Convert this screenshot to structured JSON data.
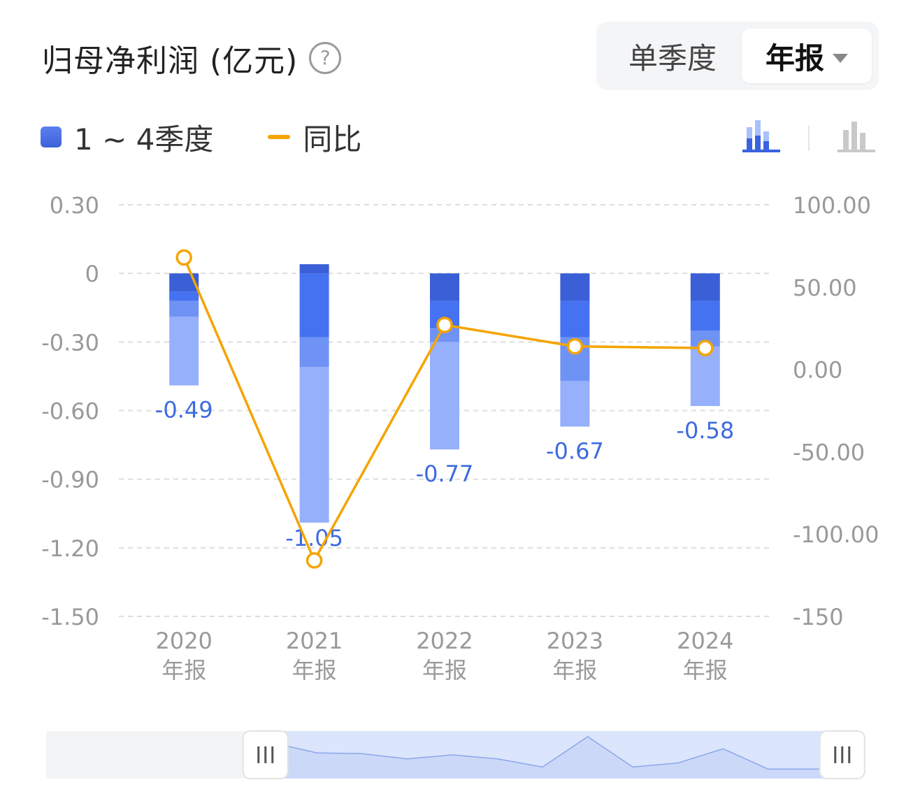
{
  "header": {
    "title": "归母净利润 (亿元)",
    "help_icon": "question-circle-icon"
  },
  "toggle": {
    "options": [
      "单季度",
      "年报"
    ],
    "selected": "年报",
    "dropdown_icon": "caret-down-icon"
  },
  "legend": {
    "bar_label": "1 ~ 4季度",
    "line_label": "同比"
  },
  "chart_type_icons": {
    "stacked": "stacked-bar-chart-icon",
    "grouped": "grouped-bar-chart-icon",
    "active": "stacked"
  },
  "colors": {
    "q1": "#3a5fd6",
    "q2": "#4572f0",
    "q3": "#6f92f5",
    "q4": "#96b0fb",
    "line": "#f5a400",
    "value_label": "#3d6ae0",
    "axis_text": "#999999",
    "grid": "#dddddd"
  },
  "chart_data": {
    "type": "bar",
    "categories": [
      "2020",
      "2021",
      "2022",
      "2023",
      "2024"
    ],
    "category_sublabel": "年报",
    "stack_segments": [
      [
        -0.08,
        -0.04,
        -0.07,
        -0.3
      ],
      [
        0.04,
        -0.28,
        -0.13,
        -0.68
      ],
      [
        -0.12,
        -0.12,
        -0.06,
        -0.47
      ],
      [
        -0.12,
        -0.16,
        -0.19,
        -0.2
      ],
      [
        -0.12,
        -0.13,
        -0.07,
        -0.26
      ]
    ],
    "totals": [
      -0.49,
      -1.05,
      -0.77,
      -0.67,
      -0.58
    ],
    "total_labels": [
      "-0.49",
      "-1.05",
      "-0.77",
      "-0.67",
      "-0.58"
    ],
    "line_series": {
      "values": [
        68,
        -116,
        27,
        14,
        13
      ]
    },
    "y_left": {
      "ticks": [
        0.3,
        0,
        -0.3,
        -0.6,
        -0.9,
        -1.2,
        -1.5
      ],
      "tick_labels": [
        "0.30",
        "0",
        "-0.30",
        "-0.60",
        "-0.90",
        "-1.20",
        "-1.50"
      ],
      "range": [
        -1.5,
        0.3
      ]
    },
    "y_right": {
      "ticks": [
        100,
        50,
        0,
        -50,
        -100,
        -150
      ],
      "tick_labels": [
        "100.00",
        "50.00",
        "0.00",
        "-50.00",
        "-100.00",
        "-150"
      ],
      "range": [
        -150,
        100
      ]
    },
    "grid": true
  },
  "navigator": {
    "values": [
      0,
      0,
      0,
      0,
      0,
      0.85,
      0.6,
      0.58,
      0.45,
      0.55,
      0.45,
      0.25,
      1.0,
      0.25,
      0.35,
      0.7,
      0.2,
      0.2,
      0.2
    ],
    "window": [
      0.27,
      0.98
    ],
    "handle_icon": "drag-handle-icon"
  }
}
